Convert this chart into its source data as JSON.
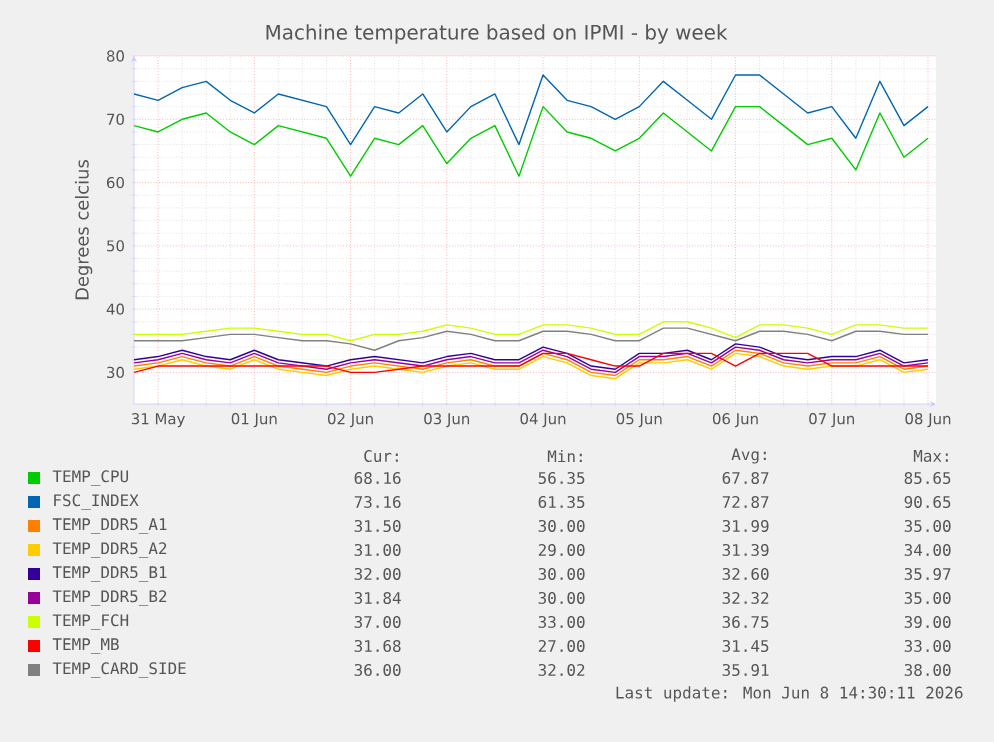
{
  "chart_data": {
    "type": "line",
    "title": "Machine temperature based on IPMI - by week",
    "ylabel": "Degrees celcius",
    "x": [
      "2026-05-30T18:00",
      "2026-05-31T00:00",
      "2026-05-31T06:00",
      "2026-05-31T12:00",
      "2026-05-31T18:00",
      "2026-06-01T00:00",
      "2026-06-01T06:00",
      "2026-06-01T12:00",
      "2026-06-01T18:00",
      "2026-06-02T00:00",
      "2026-06-02T06:00",
      "2026-06-02T12:00",
      "2026-06-02T18:00",
      "2026-06-03T00:00",
      "2026-06-03T06:00",
      "2026-06-03T12:00",
      "2026-06-03T18:00",
      "2026-06-04T00:00",
      "2026-06-04T06:00",
      "2026-06-04T12:00",
      "2026-06-04T18:00",
      "2026-06-05T00:00",
      "2026-06-05T06:00",
      "2026-06-05T12:00",
      "2026-06-05T18:00",
      "2026-06-06T00:00",
      "2026-06-06T06:00",
      "2026-06-06T12:00",
      "2026-06-06T18:00",
      "2026-06-07T00:00",
      "2026-06-07T06:00",
      "2026-06-07T12:00",
      "2026-06-07T18:00",
      "2026-06-08T00:00"
    ],
    "series": [
      {
        "name": "TEMP_CPU",
        "color": "#00cc00",
        "values": [
          69,
          68,
          70,
          71,
          68,
          66,
          69,
          68,
          67,
          61,
          67,
          66,
          69,
          63,
          67,
          69,
          61,
          72,
          68,
          67,
          65,
          67,
          71,
          68,
          65,
          72,
          72,
          69,
          66,
          67,
          62,
          71,
          64,
          67
        ]
      },
      {
        "name": "FSC_INDEX",
        "color": "#0066b3",
        "values": [
          74,
          73,
          75,
          76,
          73,
          71,
          74,
          73,
          72,
          66,
          72,
          71,
          74,
          68,
          72,
          74,
          66,
          77,
          73,
          72,
          70,
          72,
          76,
          73,
          70,
          77,
          77,
          74,
          71,
          72,
          67,
          76,
          69,
          72
        ]
      },
      {
        "name": "TEMP_DDR5_A1",
        "color": "#ff8000",
        "values": [
          31,
          31.5,
          32.5,
          31.5,
          31,
          32.5,
          31,
          30.5,
          30,
          31,
          31.5,
          31,
          30.5,
          31.5,
          32,
          31,
          31,
          33,
          32,
          30,
          29.5,
          32,
          32,
          32.5,
          31,
          33.5,
          33,
          31.5,
          31,
          31.5,
          31.5,
          32.5,
          30.5,
          31
        ]
      },
      {
        "name": "TEMP_DDR5_A2",
        "color": "#ffcc00",
        "values": [
          30.5,
          31,
          32,
          31,
          30.5,
          32,
          30.5,
          30,
          29.5,
          30.5,
          31,
          30.5,
          30,
          31,
          31.5,
          30.5,
          30.5,
          32.5,
          31.5,
          29.5,
          29,
          31.5,
          31.5,
          32,
          30.5,
          33,
          32.5,
          31,
          30.5,
          31,
          31,
          32,
          30,
          30.5
        ]
      },
      {
        "name": "TEMP_DDR5_B1",
        "color": "#330099",
        "values": [
          32,
          32.5,
          33.5,
          32.5,
          32,
          33.5,
          32,
          31.5,
          31,
          32,
          32.5,
          32,
          31.5,
          32.5,
          33,
          32,
          32,
          34,
          33,
          31,
          30.5,
          33,
          33,
          33.5,
          32,
          34.5,
          34,
          32.5,
          32,
          32.5,
          32.5,
          33.5,
          31.5,
          32
        ]
      },
      {
        "name": "TEMP_DDR5_B2",
        "color": "#990099",
        "values": [
          31.5,
          32,
          33,
          32,
          31.5,
          33,
          31.5,
          31,
          30.5,
          31.5,
          32,
          31.5,
          31,
          32,
          32.5,
          31.5,
          31.5,
          33.5,
          32.5,
          30.5,
          30,
          32.5,
          32.5,
          33,
          31.5,
          34,
          33.5,
          32,
          31.5,
          32,
          32,
          33,
          31,
          31.5
        ]
      },
      {
        "name": "TEMP_FCH",
        "color": "#ccff00",
        "values": [
          36,
          36,
          36,
          36.5,
          37,
          37,
          36.5,
          36,
          36,
          35,
          36,
          36,
          36.5,
          37.5,
          37,
          36,
          36,
          37.5,
          37.5,
          37,
          36,
          36,
          38,
          38,
          37,
          35.5,
          37.5,
          37.5,
          37,
          36,
          37.5,
          37.5,
          37,
          37
        ]
      },
      {
        "name": "TEMP_MB",
        "color": "#ff0000",
        "values": [
          30,
          31,
          31,
          31,
          31,
          31,
          31,
          31,
          31,
          30,
          30,
          30.5,
          31,
          31,
          31,
          31,
          31,
          33,
          33,
          32,
          31,
          31,
          33,
          33,
          33,
          31,
          33,
          33,
          33,
          31,
          31,
          31,
          31,
          31
        ]
      },
      {
        "name": "TEMP_CARD_SIDE",
        "color": "#808080",
        "values": [
          35,
          35,
          35,
          35.5,
          36,
          36,
          35.5,
          35,
          35,
          34.5,
          33.5,
          35,
          35.5,
          36.5,
          36,
          35,
          35,
          36.5,
          36.5,
          36,
          35,
          35,
          37,
          37,
          36,
          35,
          36.5,
          36.5,
          36,
          35,
          36.5,
          36.5,
          36,
          36
        ]
      }
    ],
    "xlim": [
      "2026-05-30T18:00",
      "2026-06-08T02:00"
    ],
    "xticks": [
      {
        "value": "2026-05-31",
        "label": "31 May"
      },
      {
        "value": "2026-06-01",
        "label": "01 Jun"
      },
      {
        "value": "2026-06-02",
        "label": "02 Jun"
      },
      {
        "value": "2026-06-03",
        "label": "03 Jun"
      },
      {
        "value": "2026-06-04",
        "label": "04 Jun"
      },
      {
        "value": "2026-06-05",
        "label": "05 Jun"
      },
      {
        "value": "2026-06-06",
        "label": "06 Jun"
      },
      {
        "value": "2026-06-07",
        "label": "07 Jun"
      },
      {
        "value": "2026-06-08",
        "label": "08 Jun"
      }
    ],
    "ylim": [
      25,
      80
    ],
    "yticks": [
      30,
      40,
      50,
      60,
      70,
      80
    ],
    "grid": true,
    "legend": "bottom",
    "annotations": [
      "Cur:",
      "Min:",
      "Avg:",
      "Max:",
      "68.16",
      "56.35",
      "67.87",
      "85.65",
      "73.16",
      "61.35",
      "72.87",
      "90.65",
      "31.50",
      "30.00",
      "31.99",
      "35.00",
      "31.00",
      "29.00",
      "31.39",
      "34.00",
      "32.00",
      "30.00",
      "32.60",
      "35.97",
      "31.84",
      "30.00",
      "32.32",
      "35.00",
      "37.00",
      "33.00",
      "36.75",
      "39.00",
      "31.68",
      "27.00",
      "31.45",
      "33.00",
      "36.00",
      "32.02",
      "35.91",
      "38.00",
      "Last update: Mon Jun 8 14:30:11 2026"
    ]
  }
}
